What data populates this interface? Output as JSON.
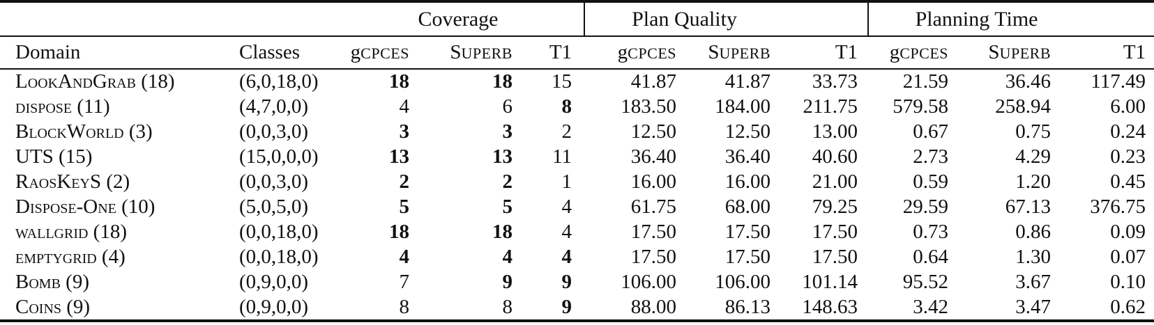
{
  "groups": {
    "coverage": "Coverage",
    "plan_quality": "Plan Quality",
    "planning_time": "Planning Time"
  },
  "columns": {
    "domain": "Domain",
    "classes": "Classes"
  },
  "planners": [
    {
      "prefix": "g",
      "sc": "CPCES"
    },
    {
      "prefix": "S",
      "sc": "UPERB"
    },
    {
      "prefix": "T1",
      "sc": ""
    }
  ],
  "rows": [
    {
      "domain": "LookAndGrab (18)",
      "classes": "(6,0,18,0)",
      "coverage": [
        {
          "v": "18",
          "bold": true
        },
        {
          "v": "18",
          "bold": true
        },
        {
          "v": "15",
          "bold": false
        }
      ],
      "plan_quality": [
        "41.87",
        "41.87",
        "33.73"
      ],
      "planning_time": [
        "21.59",
        "36.46",
        "117.49"
      ]
    },
    {
      "domain": "dispose (11)",
      "classes": "(4,7,0,0)",
      "coverage": [
        {
          "v": "4",
          "bold": false
        },
        {
          "v": "6",
          "bold": false
        },
        {
          "v": "8",
          "bold": true
        }
      ],
      "plan_quality": [
        "183.50",
        "184.00",
        "211.75"
      ],
      "planning_time": [
        "579.58",
        "258.94",
        "6.00"
      ]
    },
    {
      "domain": "BlockWorld (3)",
      "classes": "(0,0,3,0)",
      "coverage": [
        {
          "v": "3",
          "bold": true
        },
        {
          "v": "3",
          "bold": true
        },
        {
          "v": "2",
          "bold": false
        }
      ],
      "plan_quality": [
        "12.50",
        "12.50",
        "13.00"
      ],
      "planning_time": [
        "0.67",
        "0.75",
        "0.24"
      ]
    },
    {
      "domain": "UTS (15)",
      "classes": "(15,0,0,0)",
      "coverage": [
        {
          "v": "13",
          "bold": true
        },
        {
          "v": "13",
          "bold": true
        },
        {
          "v": "11",
          "bold": false
        }
      ],
      "plan_quality": [
        "36.40",
        "36.40",
        "40.60"
      ],
      "planning_time": [
        "2.73",
        "4.29",
        "0.23"
      ]
    },
    {
      "domain": "RaosKeyS (2)",
      "classes": "(0,0,3,0)",
      "coverage": [
        {
          "v": "2",
          "bold": true
        },
        {
          "v": "2",
          "bold": true
        },
        {
          "v": "1",
          "bold": false
        }
      ],
      "plan_quality": [
        "16.00",
        "16.00",
        "21.00"
      ],
      "planning_time": [
        "0.59",
        "1.20",
        "0.45"
      ]
    },
    {
      "domain": "Dispose-One (10)",
      "classes": "(5,0,5,0)",
      "coverage": [
        {
          "v": "5",
          "bold": true
        },
        {
          "v": "5",
          "bold": true
        },
        {
          "v": "4",
          "bold": false
        }
      ],
      "plan_quality": [
        "61.75",
        "68.00",
        "79.25"
      ],
      "planning_time": [
        "29.59",
        "67.13",
        "376.75"
      ]
    },
    {
      "domain": "wallgrid (18)",
      "classes": "(0,0,18,0)",
      "coverage": [
        {
          "v": "18",
          "bold": true
        },
        {
          "v": "18",
          "bold": true
        },
        {
          "v": "4",
          "bold": false
        }
      ],
      "plan_quality": [
        "17.50",
        "17.50",
        "17.50"
      ],
      "planning_time": [
        "0.73",
        "0.86",
        "0.09"
      ]
    },
    {
      "domain": "emptygrid (4)",
      "classes": "(0,0,18,0)",
      "coverage": [
        {
          "v": "4",
          "bold": true
        },
        {
          "v": "4",
          "bold": true
        },
        {
          "v": "4",
          "bold": true
        }
      ],
      "plan_quality": [
        "17.50",
        "17.50",
        "17.50"
      ],
      "planning_time": [
        "0.64",
        "1.30",
        "0.07"
      ]
    },
    {
      "domain": "Bomb (9)",
      "classes": "(0,9,0,0)",
      "coverage": [
        {
          "v": "7",
          "bold": false
        },
        {
          "v": "9",
          "bold": true
        },
        {
          "v": "9",
          "bold": true
        }
      ],
      "plan_quality": [
        "106.00",
        "106.00",
        "101.14"
      ],
      "planning_time": [
        "95.52",
        "3.67",
        "0.10"
      ]
    },
    {
      "domain": "Coins (9)",
      "classes": "(0,9,0,0)",
      "coverage": [
        {
          "v": "8",
          "bold": false
        },
        {
          "v": "8",
          "bold": false
        },
        {
          "v": "9",
          "bold": true
        }
      ],
      "plan_quality": [
        "88.00",
        "86.13",
        "148.63"
      ],
      "planning_time": [
        "3.42",
        "3.47",
        "0.62"
      ]
    }
  ]
}
